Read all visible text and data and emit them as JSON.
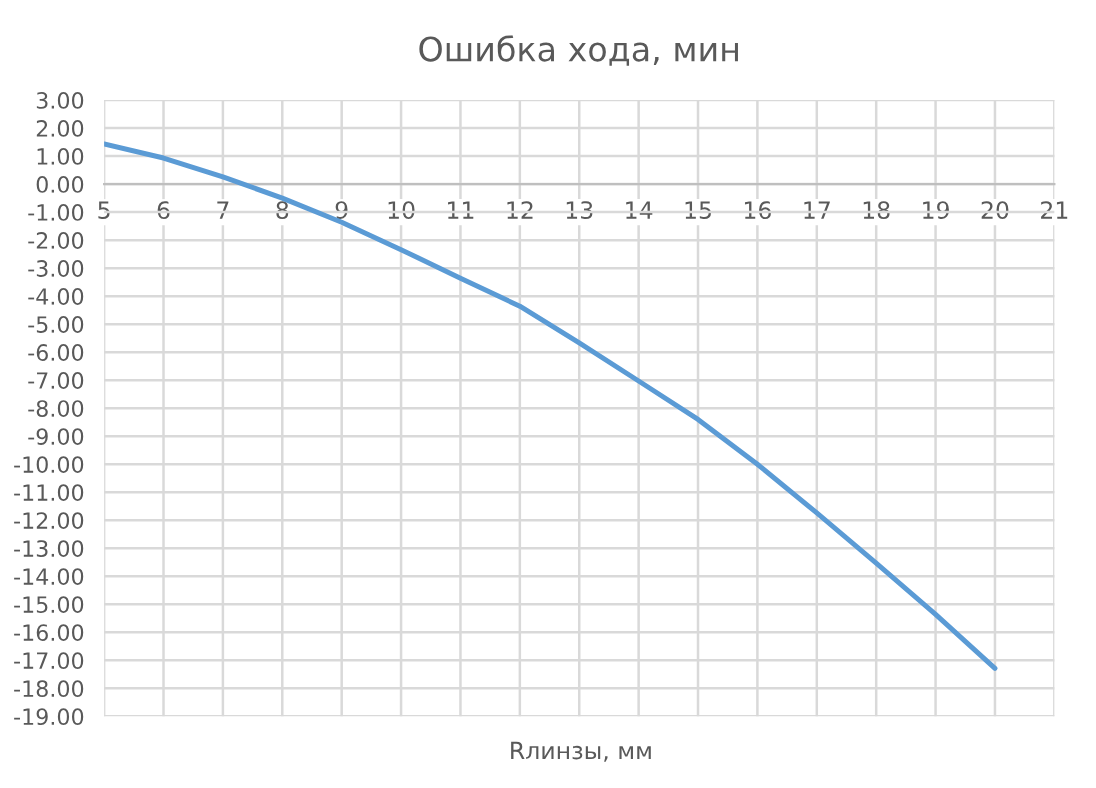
{
  "chart_data": {
    "type": "line",
    "title": "Ошибка хода, мин",
    "xlabel": "Rлинзы, мм",
    "x": [
      5,
      6,
      7,
      8,
      9,
      10,
      11,
      12,
      13,
      14,
      15,
      16,
      17,
      18,
      19,
      20
    ],
    "series": [
      {
        "color": "#5b9bd5",
        "values": [
          1.43,
          0.93,
          0.26,
          -0.5,
          -1.36,
          -2.34,
          -3.36,
          -4.36,
          -5.67,
          -7.03,
          -8.4,
          -10.0,
          -11.74,
          -13.53,
          -15.36,
          -17.29
        ]
      }
    ],
    "xlim": [
      5,
      21
    ],
    "xticks": [
      5,
      6,
      7,
      8,
      9,
      10,
      11,
      12,
      13,
      14,
      15,
      16,
      17,
      18,
      19,
      20,
      21
    ],
    "ylim": [
      -19,
      3
    ],
    "yticks": [
      {
        "value": 3,
        "label": "3.00"
      },
      {
        "value": 2,
        "label": "2.00"
      },
      {
        "value": 1,
        "label": "1.00"
      },
      {
        "value": 0,
        "label": "0.00"
      },
      {
        "value": -1,
        "label": "-1.00"
      },
      {
        "value": -2,
        "label": "-2.00"
      },
      {
        "value": -3,
        "label": "-3.00"
      },
      {
        "value": -4,
        "label": "-4.00"
      },
      {
        "value": -5,
        "label": "-5.00"
      },
      {
        "value": -6,
        "label": "-6.00"
      },
      {
        "value": -7,
        "label": "-7.00"
      },
      {
        "value": -8,
        "label": "-8.00"
      },
      {
        "value": -9,
        "label": "-9.00"
      },
      {
        "value": -10,
        "label": "-10.00"
      },
      {
        "value": -11,
        "label": "-11.00"
      },
      {
        "value": -12,
        "label": "-12.00"
      },
      {
        "value": -13,
        "label": "-13.00"
      },
      {
        "value": -14,
        "label": "-14.00"
      },
      {
        "value": -15,
        "label": "-15.00"
      },
      {
        "value": -16,
        "label": "-16.00"
      },
      {
        "value": -17,
        "label": "-17.00"
      },
      {
        "value": -18,
        "label": "-18.00"
      },
      {
        "value": -19,
        "label": "-19.00"
      }
    ],
    "grid": true,
    "marker": "none",
    "line_style": "solid"
  }
}
